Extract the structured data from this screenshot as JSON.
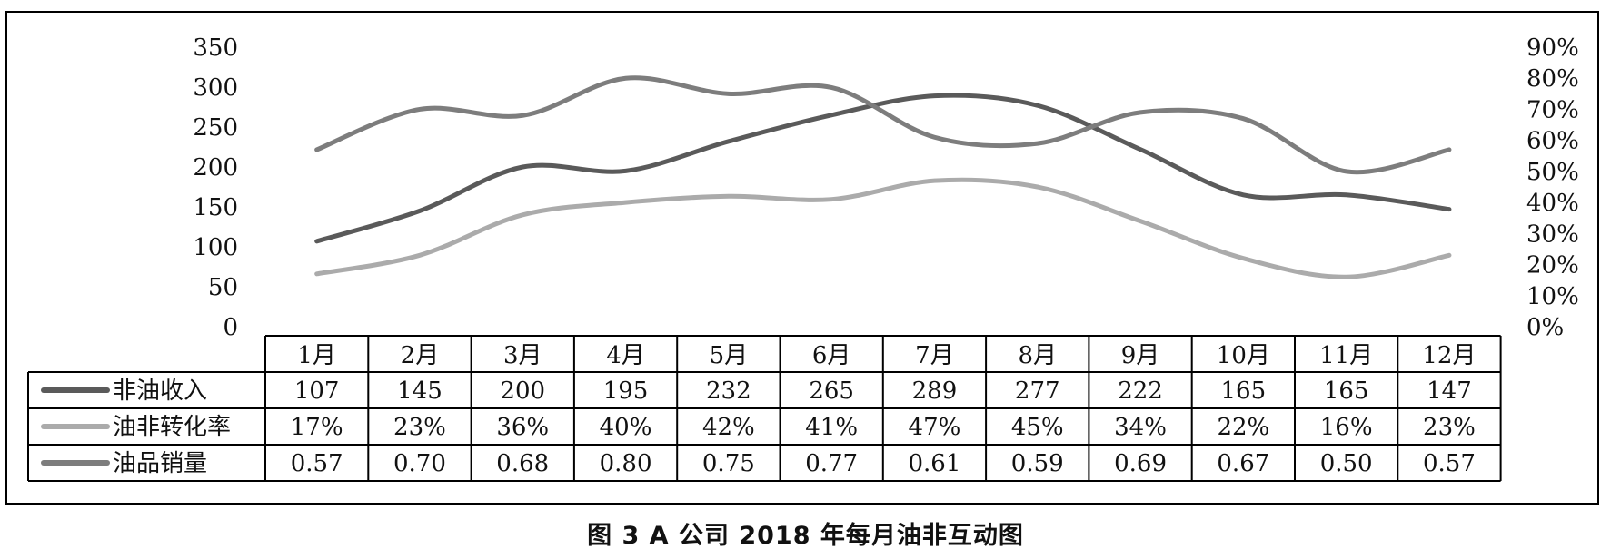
{
  "caption": "图 3  A 公司 2018 年每月油非互动图",
  "chart_data": {
    "type": "line",
    "categories": [
      "1月",
      "2月",
      "3月",
      "4月",
      "5月",
      "6月",
      "7月",
      "8月",
      "9月",
      "10月",
      "11月",
      "12月"
    ],
    "left_axis": {
      "ticks": [
        "350",
        "300",
        "250",
        "200",
        "150",
        "100",
        "50",
        "0"
      ],
      "ylim": [
        0,
        350
      ]
    },
    "right_axis": {
      "ticks": [
        "90%",
        "80%",
        "70%",
        "60%",
        "50%",
        "40%",
        "30%",
        "20%",
        "10%",
        "0%"
      ],
      "ylim": [
        0,
        0.9
      ]
    },
    "series": [
      {
        "name": "非油收入",
        "axis": "left",
        "color": "#5a5a5a",
        "values": [
          107,
          145,
          200,
          195,
          232,
          265,
          289,
          277,
          222,
          165,
          165,
          147
        ],
        "labels": [
          "107",
          "145",
          "200",
          "195",
          "232",
          "265",
          "289",
          "277",
          "222",
          "165",
          "165",
          "147"
        ]
      },
      {
        "name": "油非转化率",
        "axis": "left",
        "color": "#ababab",
        "values": [
          0.17,
          0.23,
          0.36,
          0.4,
          0.42,
          0.41,
          0.47,
          0.45,
          0.34,
          0.22,
          0.16,
          0.23
        ],
        "labels": [
          "17%",
          "23%",
          "36%",
          "40%",
          "42%",
          "41%",
          "47%",
          "45%",
          "34%",
          "22%",
          "16%",
          "23%"
        ]
      },
      {
        "name": "油品销量",
        "axis": "right",
        "color": "#7d7d7d",
        "values": [
          0.57,
          0.7,
          0.68,
          0.8,
          0.75,
          0.77,
          0.61,
          0.59,
          0.69,
          0.67,
          0.5,
          0.57
        ],
        "labels": [
          "0.57",
          "0.70",
          "0.68",
          "0.80",
          "0.75",
          "0.77",
          "0.61",
          "0.59",
          "0.69",
          "0.67",
          "0.50",
          "0.57"
        ]
      }
    ],
    "legend": "data-table-below",
    "grid": false
  }
}
